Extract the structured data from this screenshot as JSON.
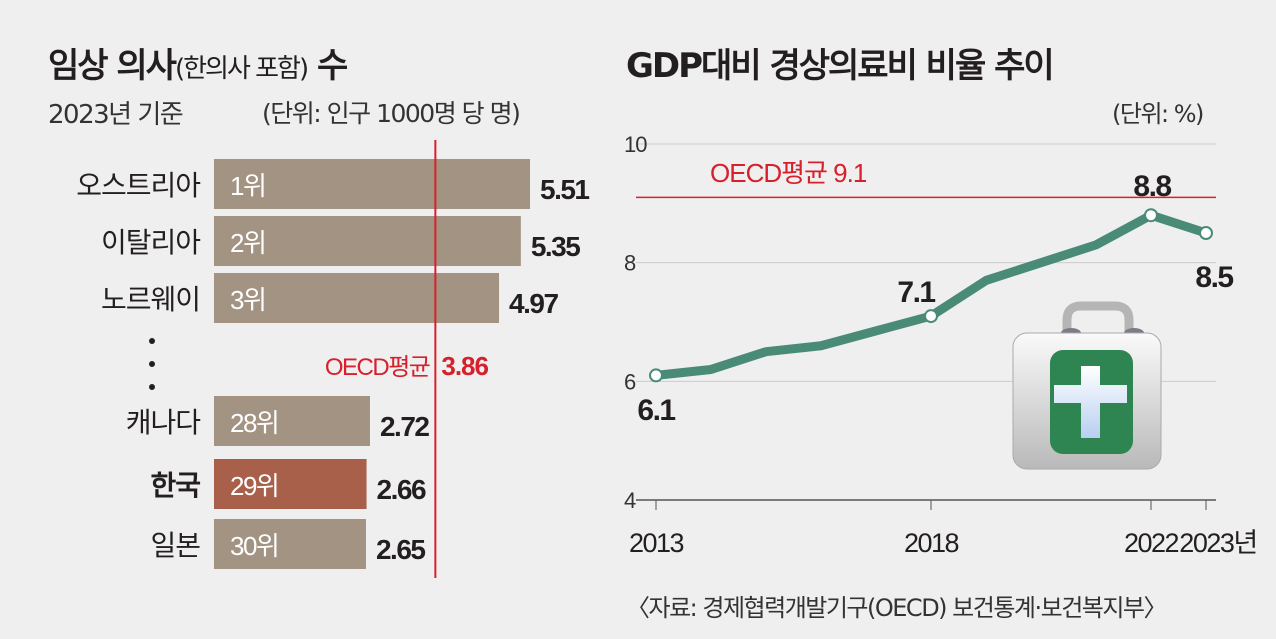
{
  "left": {
    "title_main": "임상 의사",
    "title_paren": "(한의사 포함)",
    "title_end": " 수",
    "subtitle": "2023년 기준",
    "unit": "(단위: 인구 1000명 당 명)",
    "oecd_label": "OECD평균",
    "oecd_value": "3.86"
  },
  "right": {
    "title": "GDP대비 경상의료비 비율 추이",
    "unit": "(단위: %)",
    "oecd_label": "OECD평균 9.1"
  },
  "source": "〈자료: 경제협력개발기구(OECD) 보건통계·보건복지부〉",
  "colors": {
    "bar": "#a39382",
    "highlight": "#a8604a",
    "oecd": "#d7202c",
    "line": "#4a8b78"
  },
  "chart_data": [
    {
      "type": "bar",
      "orientation": "horizontal",
      "title": "임상 의사(한의사 포함) 수",
      "categories": [
        "오스트리아",
        "이탈리아",
        "노르웨이",
        "캐나다",
        "한국",
        "일본"
      ],
      "ranks": [
        "1위",
        "2위",
        "3위",
        "28위",
        "29위",
        "30위"
      ],
      "values": [
        5.51,
        5.35,
        4.97,
        2.72,
        2.66,
        2.65
      ],
      "labels": [
        "5.51",
        "5.35",
        "4.97",
        "2.72",
        "2.66",
        "2.65"
      ],
      "highlight": "한국",
      "reference_line": {
        "label": "OECD평균",
        "value": 3.86
      },
      "xlim": [
        0,
        5.51
      ]
    },
    {
      "type": "line",
      "title": "GDP대비 경상의료비 비율 추이",
      "x": [
        2013,
        2014,
        2015,
        2016,
        2017,
        2018,
        2019,
        2020,
        2021,
        2022,
        2023
      ],
      "values": [
        6.1,
        6.2,
        6.5,
        6.6,
        6.85,
        7.1,
        7.7,
        8.0,
        8.3,
        8.8,
        8.5
      ],
      "point_labels": [
        {
          "x": 2013,
          "label": "6.1"
        },
        {
          "x": 2018,
          "label": "7.1"
        },
        {
          "x": 2022,
          "label": "8.8"
        },
        {
          "x": 2023,
          "label": "8.5"
        }
      ],
      "xticks": [
        "2013",
        "2018",
        "2022",
        "2023년"
      ],
      "xtick_values": [
        2013,
        2018,
        2022,
        2023
      ],
      "yticks": [
        "4",
        "6",
        "8",
        "10"
      ],
      "ylim": [
        4,
        10
      ],
      "reference_line": {
        "label": "OECD평균 9.1",
        "value": 9.1
      },
      "grid": true
    }
  ]
}
